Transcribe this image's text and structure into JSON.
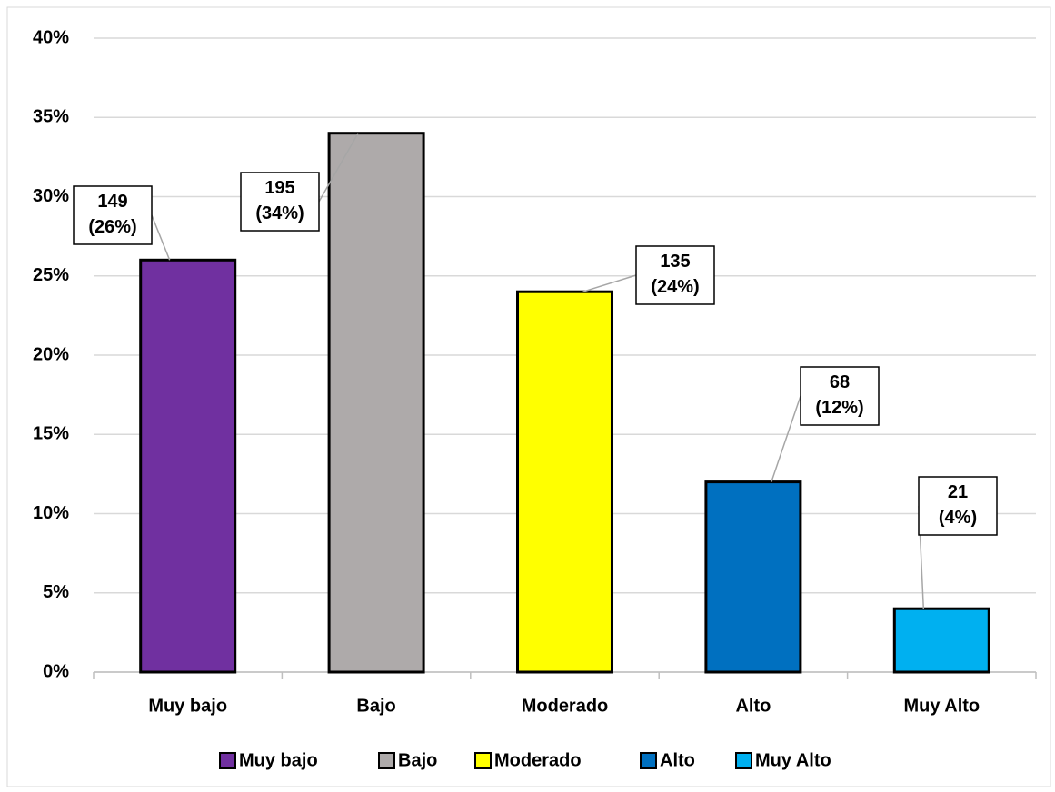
{
  "chart_data": {
    "type": "bar",
    "categories": [
      "Muy bajo",
      "Bajo",
      "Moderado",
      "Alto",
      "Muy Alto"
    ],
    "values": [
      26,
      34,
      24,
      12,
      4
    ],
    "value_labels": [
      "149\n(26%)",
      "195\n(34%)",
      "135\n(24%)",
      "68\n(12%)",
      "21\n(4%)"
    ],
    "colors": [
      "#7030a0",
      "#aeaaaa",
      "#ffff00",
      "#0070c0",
      "#00b0f0"
    ],
    "ylim": [
      0,
      40
    ],
    "yticks": [
      {
        "value": 0,
        "label": "0%"
      },
      {
        "value": 5,
        "label": "5%"
      },
      {
        "value": 10,
        "label": "10%"
      },
      {
        "value": 15,
        "label": "15%"
      },
      {
        "value": 20,
        "label": "20%"
      },
      {
        "value": 25,
        "label": "25%"
      },
      {
        "value": 30,
        "label": "30%"
      },
      {
        "value": 35,
        "label": "35%"
      },
      {
        "value": 40,
        "label": "40%"
      }
    ],
    "grid": true,
    "legend": "bottom"
  }
}
